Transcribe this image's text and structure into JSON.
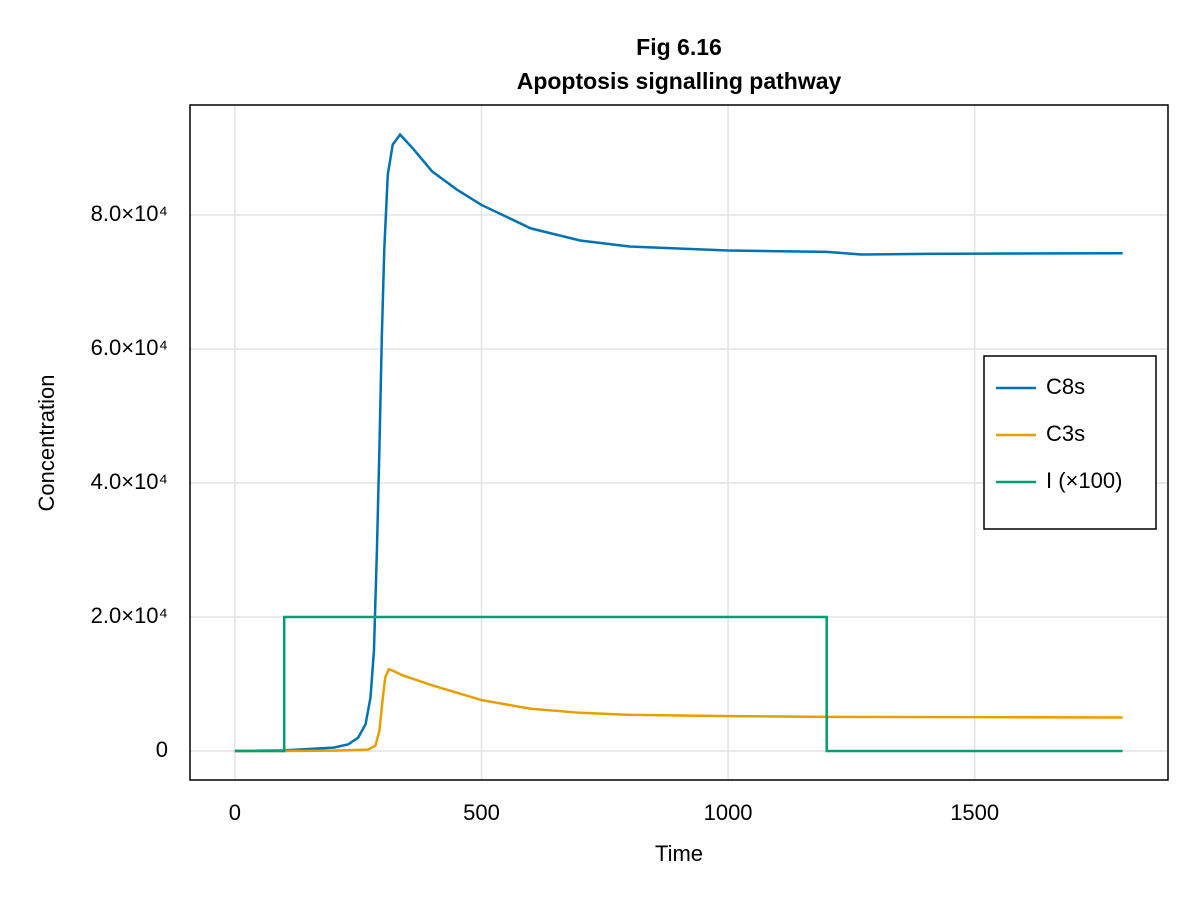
{
  "chart_data": {
    "type": "line",
    "title": "Fig 6.16",
    "subtitle": "Apoptosis signalling pathway",
    "x_label": "Time",
    "y_label": "Concentration",
    "xlim": [
      -91,
      1892
    ],
    "ylim": [
      -4328,
      96418
    ],
    "xticks": [
      0,
      500,
      1000,
      1500
    ],
    "yticks": [
      0,
      {
        "value": 20000,
        "label": "2.0×10⁴"
      },
      {
        "value": 40000,
        "label": "4.0×10⁴"
      },
      {
        "value": 60000,
        "label": "6.0×10⁴"
      },
      {
        "value": 80000,
        "label": "8.0×10⁴"
      }
    ],
    "grid": true,
    "legend_position": "right",
    "series": [
      {
        "name": "C8s",
        "color": "#0072b2",
        "x": [
          0,
          100,
          200,
          230,
          250,
          265,
          275,
          282,
          288,
          293,
          298,
          303,
          310,
          320,
          335,
          360,
          400,
          450,
          500,
          600,
          700,
          800,
          1000,
          1200,
          1270,
          1400,
          1800
        ],
        "values": [
          0,
          100,
          500,
          1000,
          2000,
          4000,
          8000,
          15000,
          30000,
          45000,
          62000,
          75000,
          86000,
          90500,
          92000,
          90000,
          86500,
          83800,
          81500,
          78000,
          76200,
          75300,
          74700,
          74500,
          74100,
          74200,
          74300
        ]
      },
      {
        "name": "C3s",
        "color": "#e69f00",
        "x": [
          0,
          100,
          200,
          270,
          285,
          293,
          300,
          305,
          312,
          320,
          340,
          400,
          500,
          600,
          700,
          800,
          1000,
          1200,
          1500,
          1800
        ],
        "values": [
          0,
          0,
          50,
          200,
          800,
          3000,
          8000,
          11000,
          12200,
          12000,
          11300,
          9800,
          7600,
          6300,
          5700,
          5400,
          5200,
          5100,
          5050,
          5000
        ]
      },
      {
        "name": "I (×100)",
        "color": "#009e73",
        "x": [
          0,
          100,
          100,
          1200,
          1200,
          1800
        ],
        "values": [
          0,
          0,
          20000,
          20000,
          0,
          0
        ]
      }
    ]
  }
}
